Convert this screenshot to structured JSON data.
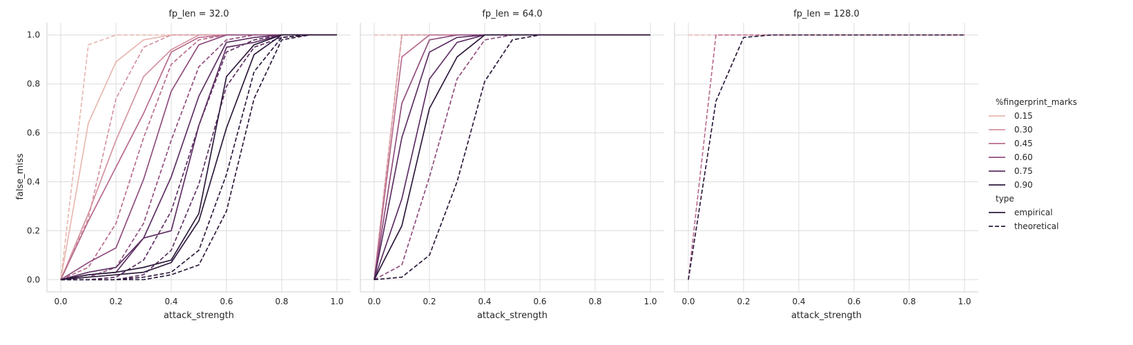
{
  "chart_data": {
    "type": "line",
    "ylabel": "false_miss",
    "xlabel": "attack_strength",
    "xlim": [
      -0.05,
      1.05
    ],
    "ylim": [
      -0.05,
      1.05
    ],
    "xticks": [
      0.0,
      0.2,
      0.4,
      0.6,
      0.8,
      1.0
    ],
    "yticks": [
      0.0,
      0.2,
      0.4,
      0.6,
      0.8,
      1.0
    ],
    "xtick_labels": [
      "0.0",
      "0.2",
      "0.4",
      "0.6",
      "0.8",
      "1.0"
    ],
    "ytick_labels": [
      "0.0",
      "0.2",
      "0.4",
      "0.6",
      "0.8",
      "1.0"
    ],
    "grid": true,
    "legend_position": "right",
    "legend": {
      "hue_title": "%fingerprint_marks",
      "hue": [
        {
          "label": "0.15",
          "color": "#e8b8b0"
        },
        {
          "label": "0.30",
          "color": "#d493a0"
        },
        {
          "label": "0.45",
          "color": "#b86b8e"
        },
        {
          "label": "0.60",
          "color": "#8f4d7e"
        },
        {
          "label": "0.75",
          "color": "#5e2f63"
        },
        {
          "label": "0.90",
          "color": "#2d1a3c"
        }
      ],
      "style_title": "type",
      "styles": [
        {
          "label": "empirical",
          "dash": "solid"
        },
        {
          "label": "theoretical",
          "dash": "dashed"
        }
      ]
    },
    "panels": [
      {
        "title": "fp_len = 32.0",
        "x": [
          0.0,
          0.1,
          0.2,
          0.3,
          0.4,
          0.5,
          0.6,
          0.7,
          0.8,
          0.9,
          1.0
        ],
        "series": [
          {
            "hue": "0.15",
            "type": "empirical",
            "values": [
              0.0,
              0.64,
              0.89,
              0.98,
              1.0,
              1.0,
              1.0,
              1.0,
              1.0,
              1.0,
              1.0
            ]
          },
          {
            "hue": "0.15",
            "type": "theoretical",
            "values": [
              0.0,
              0.96,
              1.0,
              1.0,
              1.0,
              1.0,
              1.0,
              1.0,
              1.0,
              1.0,
              1.0
            ]
          },
          {
            "hue": "0.30",
            "type": "empirical",
            "values": [
              0.0,
              0.27,
              0.57,
              0.83,
              0.94,
              1.0,
              1.0,
              1.0,
              1.0,
              1.0,
              1.0
            ]
          },
          {
            "hue": "0.30",
            "type": "theoretical",
            "values": [
              0.0,
              0.25,
              0.74,
              0.95,
              1.0,
              1.0,
              1.0,
              1.0,
              1.0,
              1.0,
              1.0
            ]
          },
          {
            "hue": "0.45",
            "type": "empirical",
            "values": [
              0.0,
              0.24,
              0.46,
              0.68,
              0.93,
              0.99,
              1.0,
              1.0,
              1.0,
              1.0,
              1.0
            ]
          },
          {
            "hue": "0.45",
            "type": "theoretical",
            "values": [
              0.0,
              0.05,
              0.23,
              0.58,
              0.88,
              0.98,
              1.0,
              1.0,
              1.0,
              1.0,
              1.0
            ]
          },
          {
            "hue": "0.60",
            "type": "empirical",
            "values": [
              0.0,
              0.07,
              0.13,
              0.41,
              0.77,
              0.96,
              1.0,
              1.0,
              1.0,
              1.0,
              1.0
            ]
          },
          {
            "hue": "0.60",
            "type": "theoretical",
            "values": [
              0.0,
              0.01,
              0.05,
              0.23,
              0.57,
              0.87,
              0.98,
              1.0,
              1.0,
              1.0,
              1.0
            ]
          },
          {
            "hue": "0.75",
            "type": "empirical",
            "values": [
              0.0,
              0.03,
              0.05,
              0.17,
              0.42,
              0.75,
              0.97,
              0.99,
              1.0,
              1.0,
              1.0
            ]
          },
          {
            "hue": "0.75",
            "type": "theoretical",
            "values": [
              0.0,
              0.0,
              0.01,
              0.08,
              0.28,
              0.63,
              0.93,
              0.98,
              1.0,
              1.0,
              1.0
            ]
          },
          {
            "hue": "0.75",
            "type": "empirical",
            "values": [
              0.0,
              0.02,
              0.03,
              0.17,
              0.2,
              0.63,
              0.95,
              0.97,
              1.0,
              1.0,
              1.0
            ]
          },
          {
            "hue": "0.75",
            "type": "theoretical",
            "values": [
              0.0,
              0.0,
              0.0,
              0.02,
              0.12,
              0.39,
              0.79,
              0.95,
              0.99,
              1.0,
              1.0
            ]
          },
          {
            "hue": "0.90",
            "type": "empirical",
            "values": [
              0.0,
              0.02,
              0.03,
              0.05,
              0.08,
              0.27,
              0.83,
              0.96,
              1.0,
              1.0,
              1.0
            ]
          },
          {
            "hue": "0.90",
            "type": "empirical",
            "values": [
              0.0,
              0.01,
              0.02,
              0.03,
              0.07,
              0.24,
              0.62,
              0.92,
              1.0,
              1.0,
              1.0
            ]
          },
          {
            "hue": "0.90",
            "type": "theoretical",
            "values": [
              0.0,
              0.0,
              0.0,
              0.01,
              0.03,
              0.12,
              0.43,
              0.85,
              0.99,
              1.0,
              1.0
            ]
          },
          {
            "hue": "0.90",
            "type": "theoretical",
            "values": [
              0.0,
              0.0,
              0.0,
              0.0,
              0.02,
              0.06,
              0.28,
              0.74,
              0.98,
              1.0,
              1.0
            ]
          }
        ]
      },
      {
        "title": "fp_len = 64.0",
        "x": [
          0.0,
          0.1,
          0.2,
          0.3,
          0.4,
          0.5,
          0.6,
          0.7,
          0.8,
          0.9,
          1.0
        ],
        "series": [
          {
            "hue": "0.15",
            "type": "empirical",
            "values": [
              0.0,
              1.0,
              1.0,
              1.0,
              1.0,
              1.0,
              1.0,
              1.0,
              1.0,
              1.0,
              1.0
            ]
          },
          {
            "hue": "0.15",
            "type": "theoretical",
            "values": [
              1.0,
              1.0,
              1.0,
              1.0,
              1.0,
              1.0,
              1.0,
              1.0,
              1.0,
              1.0,
              1.0
            ]
          },
          {
            "hue": "0.30",
            "type": "theoretical",
            "values": [
              0.0,
              1.0,
              1.0,
              1.0,
              1.0,
              1.0,
              1.0,
              1.0,
              1.0,
              1.0,
              1.0
            ]
          },
          {
            "hue": "0.45",
            "type": "empirical",
            "values": [
              0.0,
              0.91,
              1.0,
              1.0,
              1.0,
              1.0,
              1.0,
              1.0,
              1.0,
              1.0,
              1.0
            ]
          },
          {
            "hue": "0.60",
            "type": "empirical",
            "values": [
              0.0,
              0.72,
              0.98,
              1.0,
              1.0,
              1.0,
              1.0,
              1.0,
              1.0,
              1.0,
              1.0
            ]
          },
          {
            "hue": "0.60",
            "type": "theoretical",
            "values": [
              0.0,
              0.06,
              0.42,
              0.82,
              0.98,
              1.0,
              1.0,
              1.0,
              1.0,
              1.0,
              1.0
            ]
          },
          {
            "hue": "0.75",
            "type": "empirical",
            "values": [
              0.0,
              0.58,
              0.93,
              0.99,
              1.0,
              1.0,
              1.0,
              1.0,
              1.0,
              1.0,
              1.0
            ]
          },
          {
            "hue": "0.75",
            "type": "empirical",
            "values": [
              0.0,
              0.33,
              0.82,
              0.97,
              1.0,
              1.0,
              1.0,
              1.0,
              1.0,
              1.0,
              1.0
            ]
          },
          {
            "hue": "0.90",
            "type": "empirical",
            "values": [
              0.0,
              0.22,
              0.7,
              0.91,
              1.0,
              1.0,
              1.0,
              1.0,
              1.0,
              1.0,
              1.0
            ]
          },
          {
            "hue": "0.90",
            "type": "theoretical",
            "values": [
              0.0,
              0.01,
              0.1,
              0.4,
              0.81,
              0.98,
              1.0,
              1.0,
              1.0,
              1.0,
              1.0
            ]
          }
        ]
      },
      {
        "title": "fp_len = 128.0",
        "x": [
          0.0,
          0.1,
          0.2,
          0.3,
          0.4,
          0.5,
          0.6,
          0.7,
          0.8,
          0.9,
          1.0
        ],
        "series": [
          {
            "hue": "0.15",
            "type": "theoretical",
            "values": [
              1.0,
              1.0,
              1.0,
              1.0,
              1.0,
              1.0,
              1.0,
              1.0,
              1.0,
              1.0,
              1.0
            ]
          },
          {
            "hue": "0.45",
            "type": "theoretical",
            "values": [
              0.0,
              1.0,
              1.0,
              1.0,
              1.0,
              1.0,
              1.0,
              1.0,
              1.0,
              1.0,
              1.0
            ]
          },
          {
            "hue": "0.90",
            "type": "theoretical",
            "values": [
              0.0,
              0.73,
              0.99,
              1.0,
              1.0,
              1.0,
              1.0,
              1.0,
              1.0,
              1.0,
              1.0
            ]
          }
        ]
      }
    ]
  }
}
